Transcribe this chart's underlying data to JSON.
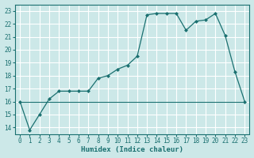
{
  "xlabel": "Humidex (Indice chaleur)",
  "ylabel": "",
  "background_color": "#cce8e8",
  "grid_color": "#ffffff",
  "line_color": "#1a7070",
  "xlim": [
    -0.5,
    23.5
  ],
  "ylim": [
    13.5,
    23.5
  ],
  "xticks": [
    0,
    1,
    2,
    3,
    4,
    5,
    6,
    7,
    8,
    9,
    10,
    11,
    12,
    13,
    14,
    15,
    16,
    17,
    18,
    19,
    20,
    21,
    22,
    23
  ],
  "yticks": [
    14,
    15,
    16,
    17,
    18,
    19,
    20,
    21,
    22,
    23
  ],
  "line1_x": [
    0,
    1,
    2,
    3,
    4,
    5,
    6,
    7,
    8,
    9,
    10,
    11,
    12,
    13,
    14,
    15,
    16,
    17,
    18,
    19,
    20,
    21,
    22,
    23
  ],
  "line1_y": [
    16.0,
    13.8,
    15.0,
    16.2,
    16.8,
    16.8,
    16.8,
    16.8,
    17.8,
    18.0,
    18.5,
    18.8,
    19.5,
    22.7,
    22.8,
    22.8,
    22.8,
    21.5,
    22.2,
    22.3,
    22.8,
    21.1,
    18.3,
    16.0
  ],
  "line2_x": [
    0,
    12,
    22,
    23
  ],
  "line2_y": [
    16.0,
    16.0,
    16.0,
    16.0
  ]
}
